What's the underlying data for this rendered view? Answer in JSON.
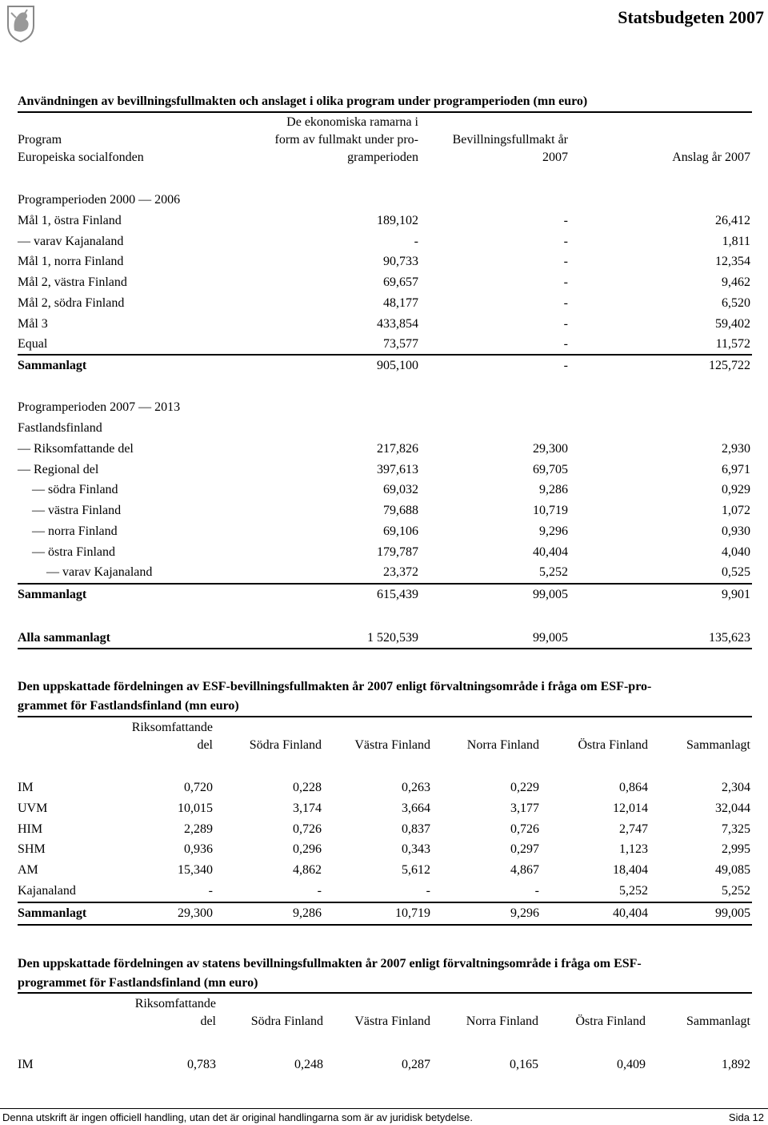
{
  "header": {
    "title": "Statsbudgeten 2007"
  },
  "table1": {
    "title": "Användningen av bevillningsfullmakten och anslaget i olika program under programperioden (mn euro)",
    "columns": [
      [
        "Program",
        "Europeiska socialfonden"
      ],
      [
        "De ekonomiska ramarna i",
        "form av fullmakt under pro-",
        "gramperioden"
      ],
      [
        "Bevillningsfullmakt år",
        "2007"
      ],
      [
        "Anslag år 2007"
      ]
    ],
    "sections": [
      {
        "title": "Programperioden 2000 — 2006",
        "rows": [
          {
            "label": "Mål 1, östra Finland",
            "values": [
              "189,102",
              "-",
              "26,412"
            ]
          },
          {
            "label": "— varav Kajanaland",
            "values": [
              "-",
              "-",
              "1,811"
            ]
          },
          {
            "label": "Mål 1, norra Finland",
            "values": [
              "90,733",
              "-",
              "12,354"
            ]
          },
          {
            "label": "Mål 2, västra Finland",
            "values": [
              "69,657",
              "-",
              "9,462"
            ]
          },
          {
            "label": "Mål 2, södra Finland",
            "values": [
              "48,177",
              "-",
              "6,520"
            ]
          },
          {
            "label": "Mål 3",
            "values": [
              "433,854",
              "-",
              "59,402"
            ]
          },
          {
            "label": "Equal",
            "values": [
              "73,577",
              "-",
              "11,572"
            ]
          }
        ],
        "total": {
          "label": "Sammanlagt",
          "values": [
            "905,100",
            "-",
            "125,722"
          ]
        }
      },
      {
        "title": "Programperioden 2007 — 2013",
        "subtitle": "Fastlandsfinland",
        "rows": [
          {
            "label": "— Riksomfattande del",
            "values": [
              "217,826",
              "29,300",
              "2,930"
            ]
          },
          {
            "label": "— Regional del",
            "values": [
              "397,613",
              "69,705",
              "6,971"
            ]
          },
          {
            "label": "— södra Finland",
            "values": [
              "69,032",
              "9,286",
              "0,929"
            ]
          },
          {
            "label": "— västra Finland",
            "values": [
              "79,688",
              "10,719",
              "1,072"
            ]
          },
          {
            "label": "— norra Finland",
            "values": [
              "69,106",
              "9,296",
              "0,930"
            ]
          },
          {
            "label": "— östra Finland",
            "values": [
              "179,787",
              "40,404",
              "4,040"
            ]
          },
          {
            "label": "— varav Kajanaland",
            "values": [
              "23,372",
              "5,252",
              "0,525"
            ]
          }
        ],
        "total": {
          "label": "Sammanlagt",
          "values": [
            "615,439",
            "99,005",
            "9,901"
          ]
        }
      }
    ],
    "grand_total": {
      "label": "Alla sammanlagt",
      "values": [
        "1 520,539",
        "99,005",
        "135,623"
      ]
    }
  },
  "table2": {
    "title": [
      "Den uppskattade fördelningen av ESF-bevillningsfullmakten år 2007 enligt förvaltningsområde i fråga om ESF-pro-",
      "grammet för Fastlandsfinland (mn euro)"
    ],
    "columns": [
      [
        "Riksomfattande",
        "del"
      ],
      [
        "Södra Finland"
      ],
      [
        "Västra Finland"
      ],
      [
        "Norra Finland"
      ],
      [
        "Östra Finland"
      ],
      [
        "Sammanlagt"
      ]
    ],
    "rows": [
      {
        "label": "IM",
        "values": [
          "0,720",
          "0,228",
          "0,263",
          "0,229",
          "0,864",
          "2,304"
        ]
      },
      {
        "label": "UVM",
        "values": [
          "10,015",
          "3,174",
          "3,664",
          "3,177",
          "12,014",
          "32,044"
        ]
      },
      {
        "label": "HIM",
        "values": [
          "2,289",
          "0,726",
          "0,837",
          "0,726",
          "2,747",
          "7,325"
        ]
      },
      {
        "label": "SHM",
        "values": [
          "0,936",
          "0,296",
          "0,343",
          "0,297",
          "1,123",
          "2,995"
        ]
      },
      {
        "label": "AM",
        "values": [
          "15,340",
          "4,862",
          "5,612",
          "4,867",
          "18,404",
          "49,085"
        ]
      },
      {
        "label": "Kajanaland",
        "values": [
          "-",
          "-",
          "-",
          "-",
          "5,252",
          "5,252"
        ]
      }
    ],
    "total": {
      "label": "Sammanlagt",
      "values": [
        "29,300",
        "9,286",
        "10,719",
        "9,296",
        "40,404",
        "99,005"
      ]
    }
  },
  "table3": {
    "title": [
      "Den uppskattade fördelningen av statens bevillningsfullmakten år 2007 enligt förvaltningsområde i fråga om ESF-",
      "programmet för Fastlandsfinland (mn euro)"
    ],
    "columns": [
      [
        "Riksomfattande",
        "del"
      ],
      [
        "Södra Finland"
      ],
      [
        "Västra Finland"
      ],
      [
        "Norra Finland"
      ],
      [
        "Östra Finland"
      ],
      [
        "Sammanlagt"
      ]
    ],
    "rows": [
      {
        "label": "IM",
        "values": [
          "0,783",
          "0,248",
          "0,287",
          "0,165",
          "0,409",
          "1,892"
        ]
      }
    ]
  },
  "footer": {
    "note": "Denna utskrift är ingen officiell handling, utan det är original handlingarna som är av juridisk betydelse.",
    "page": "Sida 12"
  }
}
